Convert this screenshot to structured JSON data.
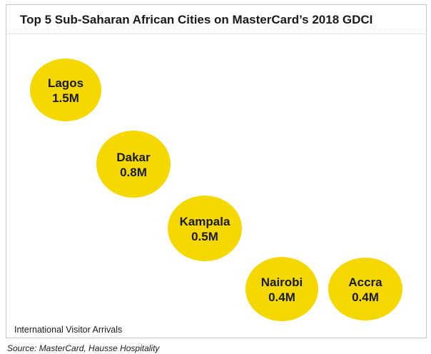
{
  "chart_data": {
    "type": "bubble",
    "title": "Top 5 Sub-Saharan African Cities on MasterCard’s 2018 GDCI",
    "metric_label": "International Visitor Arrivals",
    "unit": "M",
    "colors": {
      "bubble": "#f5d800",
      "text": "#1a1a1a"
    },
    "points": [
      {
        "city": "Lagos",
        "value": 1.5,
        "label": "1.5M"
      },
      {
        "city": "Dakar",
        "value": 0.8,
        "label": "0.8M"
      },
      {
        "city": "Kampala",
        "value": 0.5,
        "label": "0.5M"
      },
      {
        "city": "Nairobi",
        "value": 0.4,
        "label": "0.4M"
      },
      {
        "city": "Accra",
        "value": 0.4,
        "label": "0.4M"
      }
    ]
  },
  "source": "Source:  MasterCard, Hausse Hospitality"
}
